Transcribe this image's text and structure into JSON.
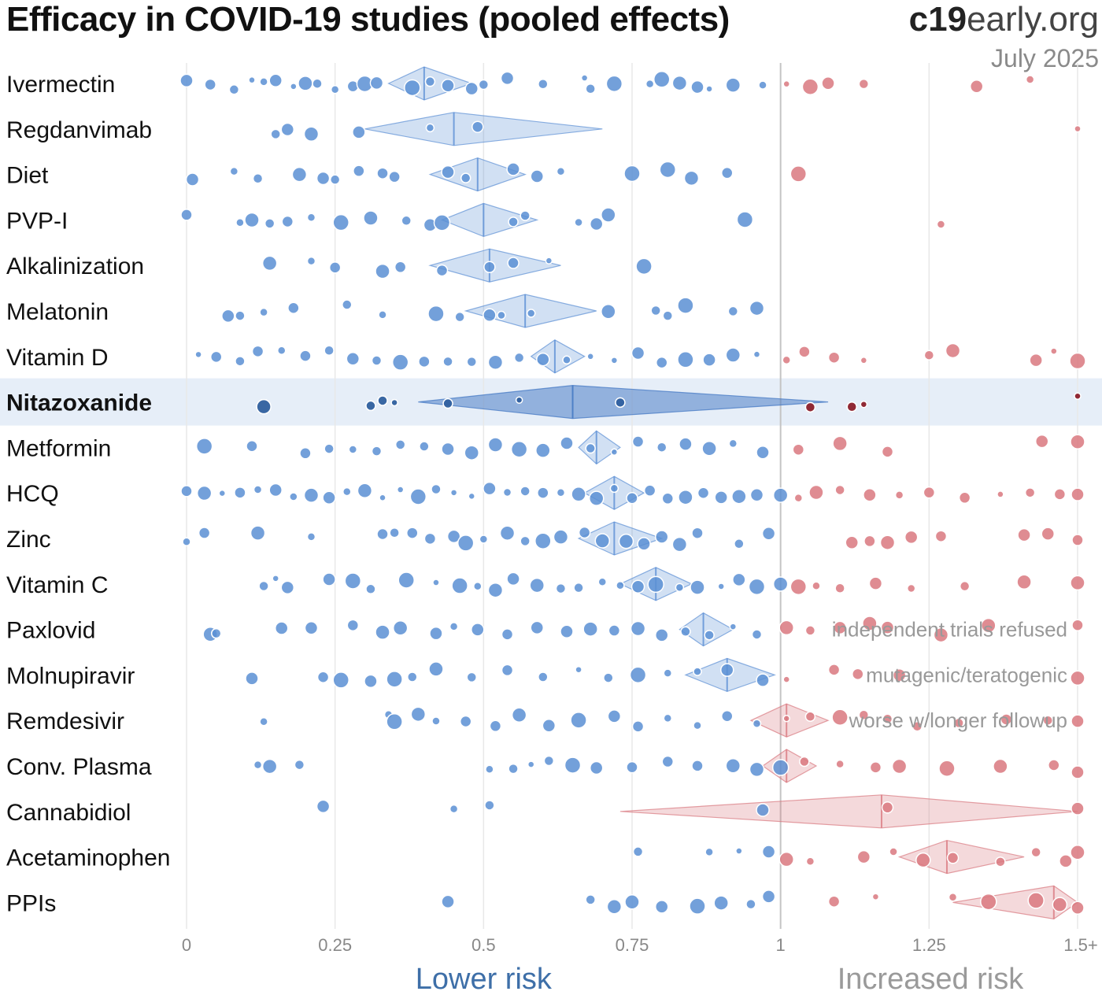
{
  "header": {
    "title": "Efficacy in COVID-19 studies (pooled effects)",
    "brand_bold": "c19",
    "brand_rest": "early.org",
    "date": "July 2025"
  },
  "colors": {
    "benefit": "#5b8fd4",
    "harm": "#d9787f",
    "highlight_band": "#e6eef8",
    "highlight_diamond": "#3d74c2",
    "highlight_harm": "#8b1e2a"
  },
  "chart_data": {
    "type": "scatter",
    "xlim": [
      0,
      1.5
    ],
    "x_ticks": [
      {
        "value": 0,
        "label": "0"
      },
      {
        "value": 0.25,
        "label": "0.25"
      },
      {
        "value": 0.5,
        "label": "0.5"
      },
      {
        "value": 0.75,
        "label": "0.75"
      },
      {
        "value": 1,
        "label": "1"
      },
      {
        "value": 1.25,
        "label": "1.25"
      },
      {
        "value": 1.5,
        "label": "1.5+"
      }
    ],
    "x_axis_left_label": "Lower risk",
    "x_axis_right_label": "Increased risk",
    "grid": true,
    "rows": [
      {
        "name": "Ivermectin",
        "pooled": 0.4,
        "ci": [
          0.34,
          0.48
        ],
        "studies": [
          0.0,
          0.04,
          0.08,
          0.11,
          0.13,
          0.15,
          0.18,
          0.2,
          0.22,
          0.25,
          0.28,
          0.3,
          0.32,
          0.38,
          0.41,
          0.44,
          0.48,
          0.5,
          0.54,
          0.6,
          0.67,
          0.68,
          0.72,
          0.78,
          0.8,
          0.83,
          0.86,
          0.88,
          0.92,
          0.97,
          1.01,
          1.05,
          1.08,
          1.14,
          1.33,
          1.42
        ]
      },
      {
        "name": "Regdanvimab",
        "pooled": 0.45,
        "ci": [
          0.3,
          0.7
        ],
        "studies": [
          0.15,
          0.17,
          0.21,
          0.29,
          0.41,
          0.49,
          1.5
        ]
      },
      {
        "name": "Diet",
        "pooled": 0.49,
        "ci": [
          0.41,
          0.57
        ],
        "studies": [
          0.01,
          0.08,
          0.12,
          0.19,
          0.23,
          0.25,
          0.29,
          0.33,
          0.35,
          0.44,
          0.47,
          0.55,
          0.59,
          0.63,
          0.75,
          0.81,
          0.85,
          0.91,
          1.03
        ]
      },
      {
        "name": "PVP-I",
        "pooled": 0.5,
        "ci": [
          0.43,
          0.59
        ],
        "studies": [
          0.0,
          0.09,
          0.11,
          0.14,
          0.17,
          0.21,
          0.26,
          0.31,
          0.37,
          0.41,
          0.43,
          0.55,
          0.57,
          0.66,
          0.69,
          0.71,
          0.94,
          1.27
        ]
      },
      {
        "name": "Alkalinization",
        "pooled": 0.51,
        "ci": [
          0.41,
          0.63
        ],
        "studies": [
          0.14,
          0.21,
          0.25,
          0.33,
          0.36,
          0.43,
          0.51,
          0.55,
          0.61,
          0.77
        ]
      },
      {
        "name": "Melatonin",
        "pooled": 0.57,
        "ci": [
          0.47,
          0.69
        ],
        "studies": [
          0.07,
          0.09,
          0.13,
          0.18,
          0.27,
          0.33,
          0.42,
          0.46,
          0.51,
          0.53,
          0.58,
          0.71,
          0.79,
          0.81,
          0.84,
          0.92,
          0.96
        ]
      },
      {
        "name": "Vitamin D",
        "pooled": 0.62,
        "ci": [
          0.58,
          0.67
        ],
        "studies": [
          0.02,
          0.05,
          0.09,
          0.12,
          0.16,
          0.2,
          0.24,
          0.28,
          0.32,
          0.36,
          0.4,
          0.44,
          0.48,
          0.52,
          0.56,
          0.6,
          0.64,
          0.68,
          0.72,
          0.76,
          0.8,
          0.84,
          0.88,
          0.92,
          0.96,
          1.01,
          1.04,
          1.09,
          1.14,
          1.25,
          1.29,
          1.43,
          1.46,
          1.5
        ]
      },
      {
        "name": "Nitazoxanide",
        "pooled": 0.65,
        "ci": [
          0.39,
          1.08
        ],
        "highlight": true,
        "studies": [
          0.13,
          0.31,
          0.33,
          0.35,
          0.44,
          0.56,
          0.73,
          1.05,
          1.12,
          1.14,
          1.5
        ]
      },
      {
        "name": "Metformin",
        "pooled": 0.69,
        "ci": [
          0.66,
          0.73
        ],
        "studies": [
          0.03,
          0.11,
          0.2,
          0.24,
          0.28,
          0.32,
          0.36,
          0.4,
          0.44,
          0.48,
          0.52,
          0.56,
          0.6,
          0.64,
          0.68,
          0.72,
          0.76,
          0.8,
          0.84,
          0.88,
          0.92,
          0.97,
          1.03,
          1.1,
          1.18,
          1.44,
          1.5
        ]
      },
      {
        "name": "HCQ",
        "pooled": 0.72,
        "ci": [
          0.67,
          0.77
        ],
        "studies": [
          0.0,
          0.03,
          0.06,
          0.09,
          0.12,
          0.15,
          0.18,
          0.21,
          0.24,
          0.27,
          0.3,
          0.33,
          0.36,
          0.39,
          0.42,
          0.45,
          0.48,
          0.51,
          0.54,
          0.57,
          0.6,
          0.63,
          0.66,
          0.69,
          0.72,
          0.75,
          0.78,
          0.81,
          0.84,
          0.87,
          0.9,
          0.93,
          0.96,
          1.0,
          1.03,
          1.06,
          1.1,
          1.15,
          1.2,
          1.25,
          1.31,
          1.37,
          1.42,
          1.47,
          1.5
        ]
      },
      {
        "name": "Zinc",
        "pooled": 0.72,
        "ci": [
          0.66,
          0.8
        ],
        "studies": [
          0.0,
          0.03,
          0.12,
          0.21,
          0.33,
          0.35,
          0.38,
          0.41,
          0.45,
          0.47,
          0.5,
          0.54,
          0.57,
          0.6,
          0.63,
          0.67,
          0.7,
          0.74,
          0.77,
          0.8,
          0.83,
          0.86,
          0.93,
          0.98,
          1.12,
          1.15,
          1.18,
          1.22,
          1.27,
          1.41,
          1.45,
          1.5
        ]
      },
      {
        "name": "Vitamin C",
        "pooled": 0.79,
        "ci": [
          0.73,
          0.85
        ],
        "studies": [
          0.13,
          0.15,
          0.17,
          0.24,
          0.28,
          0.31,
          0.37,
          0.42,
          0.46,
          0.49,
          0.52,
          0.55,
          0.59,
          0.63,
          0.66,
          0.7,
          0.73,
          0.76,
          0.79,
          0.83,
          0.86,
          0.9,
          0.93,
          0.96,
          1.0,
          1.03,
          1.06,
          1.1,
          1.16,
          1.22,
          1.31,
          1.41,
          1.5
        ]
      },
      {
        "name": "Paxlovid",
        "pooled": 0.87,
        "ci": [
          0.83,
          0.92
        ],
        "studies": [
          0.04,
          0.05,
          0.16,
          0.21,
          0.28,
          0.33,
          0.36,
          0.42,
          0.45,
          0.49,
          0.54,
          0.59,
          0.64,
          0.68,
          0.72,
          0.76,
          0.8,
          0.84,
          0.88,
          0.92,
          0.96,
          1.01,
          1.05,
          1.1,
          1.15,
          1.18,
          1.27,
          1.35,
          1.5
        ]
      },
      {
        "name": "Molnupiravir",
        "pooled": 0.91,
        "ci": [
          0.84,
          0.99
        ],
        "studies": [
          0.11,
          0.23,
          0.26,
          0.31,
          0.35,
          0.38,
          0.42,
          0.48,
          0.54,
          0.6,
          0.66,
          0.71,
          0.76,
          0.81,
          0.86,
          0.91,
          0.97,
          1.01,
          1.09,
          1.13,
          1.2,
          1.5
        ]
      },
      {
        "name": "Remdesivir",
        "pooled": 1.01,
        "ci": [
          0.95,
          1.08
        ],
        "studies": [
          0.13,
          0.34,
          0.35,
          0.39,
          0.42,
          0.47,
          0.52,
          0.56,
          0.61,
          0.66,
          0.72,
          0.76,
          0.81,
          0.86,
          0.91,
          0.96,
          1.01,
          1.05,
          1.1,
          1.14,
          1.18,
          1.23,
          1.3,
          1.38,
          1.45,
          1.5
        ]
      },
      {
        "name": "Conv. Plasma",
        "pooled": 1.01,
        "ci": [
          0.97,
          1.06
        ],
        "studies": [
          0.12,
          0.14,
          0.19,
          0.51,
          0.55,
          0.58,
          0.61,
          0.65,
          0.69,
          0.75,
          0.81,
          0.86,
          0.92,
          0.96,
          1.0,
          1.04,
          1.1,
          1.16,
          1.2,
          1.28,
          1.37,
          1.46,
          1.5
        ]
      },
      {
        "name": "Cannabidiol",
        "pooled": 1.17,
        "ci": [
          0.73,
          1.5
        ],
        "studies": [
          0.23,
          0.45,
          0.51,
          0.97,
          1.18,
          1.5
        ]
      },
      {
        "name": "Acetaminophen",
        "pooled": 1.28,
        "ci": [
          1.2,
          1.41
        ],
        "studies": [
          0.76,
          0.88,
          0.93,
          0.98,
          1.01,
          1.05,
          1.14,
          1.19,
          1.24,
          1.29,
          1.37,
          1.43,
          1.48,
          1.5
        ]
      },
      {
        "name": "PPIs",
        "pooled": 1.46,
        "ci": [
          1.29,
          1.5
        ],
        "studies": [
          0.44,
          0.68,
          0.72,
          0.75,
          0.8,
          0.86,
          0.9,
          0.95,
          0.98,
          1.09,
          1.16,
          1.29,
          1.35,
          1.43,
          1.47,
          1.5
        ]
      }
    ],
    "annotations": [
      {
        "row": "Paxlovid",
        "text": "independent trials refused"
      },
      {
        "row": "Molnupiravir",
        "text": "mutagenic/teratogenic"
      },
      {
        "row": "Remdesivir",
        "text": "worse w/longer followup"
      }
    ]
  }
}
